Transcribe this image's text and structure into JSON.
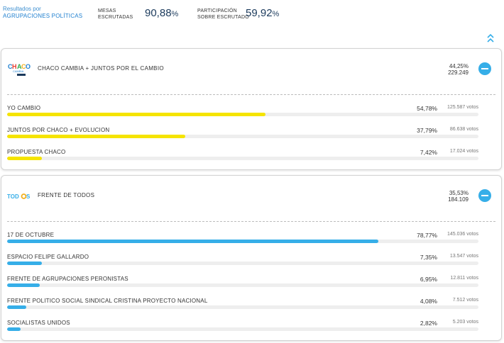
{
  "header": {
    "results_line1": "Resultados por",
    "results_line2": "AGRUPACIONES POLÍTICAS",
    "mesas_line1": "MESAS",
    "mesas_line2": "ESCRUTADAS",
    "mesas_value": "90,88",
    "mesas_unit": "%",
    "part_line1": "PARTICIPACIÓN",
    "part_line2": "SOBRE ESCRUTADO",
    "part_value": "59,92",
    "part_unit": "%"
  },
  "toggle_icon": "double-chevron-up-icon",
  "colors": {
    "accent": "#36aee8",
    "yellow": "#f5e400",
    "blue": "#36aee8",
    "dark": "#1b3a5c"
  },
  "groups": [
    {
      "name": "CHACO CAMBIA + JUNTOS POR EL CAMBIO",
      "logo": "chaco-cambia-logo",
      "percent": "44,25%",
      "votes": "229.249",
      "bar_color": "#f5e400",
      "lists": [
        {
          "name": "YO CAMBIO",
          "percent": "54,78%",
          "votes": "125.587 votos",
          "share": 0.5478
        },
        {
          "name": "JUNTOS POR CHACO + EVOLUCION",
          "percent": "37,79%",
          "votes": "86.638 votos",
          "share": 0.3779
        },
        {
          "name": "PROPUESTA CHACO",
          "percent": "7,42%",
          "votes": "17.024 votos",
          "share": 0.0742
        }
      ]
    },
    {
      "name": "FRENTE DE TODOS",
      "logo": "frente-de-todos-logo",
      "logo_text_a": "TOD",
      "logo_text_b": "S",
      "percent": "35,53%",
      "votes": "184.109",
      "bar_color": "#36aee8",
      "lists": [
        {
          "name": "17 DE OCTUBRE",
          "percent": "78,77%",
          "votes": "145.036 votos",
          "share": 0.7877
        },
        {
          "name": "ESPACIO FELIPE GALLARDO",
          "percent": "7,35%",
          "votes": "13.547 votos",
          "share": 0.0735
        },
        {
          "name": "FRENTE DE AGRUPACIONES PERONISTAS",
          "percent": "6,95%",
          "votes": "12.811 votos",
          "share": 0.0695
        },
        {
          "name": "FRENTE POLITICO SOCIAL SINDICAL CRISTINA PROYECTO NACIONAL",
          "percent": "4,08%",
          "votes": "7.512 votos",
          "share": 0.0408
        },
        {
          "name": "SOCIALISTAS UNIDOS",
          "percent": "2,82%",
          "votes": "5.203 votos",
          "share": 0.0282
        }
      ]
    }
  ]
}
